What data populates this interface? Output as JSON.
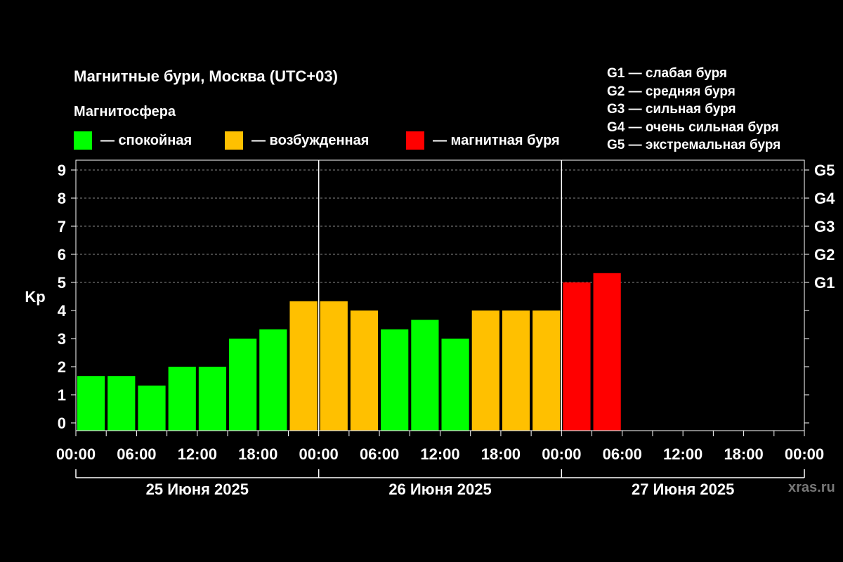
{
  "title": "Магнитные бури, Москва (UTC+03)",
  "subtitle": "Магнитосфера",
  "legend": {
    "calm": {
      "label": "— спокойная",
      "color": "#00ff00"
    },
    "excited": {
      "label": "— возбужденная",
      "color": "#ffc000"
    },
    "storm": {
      "label": "— магнитная буря",
      "color": "#ff0000"
    }
  },
  "g_levels": [
    "G1 — слабая буря",
    "G2 — средняя буря",
    "G3 — сильная буря",
    "G4 — очень сильная буря",
    "G5 — экстремальная буря"
  ],
  "watermark": "xras.ru",
  "chart_data": {
    "type": "bar",
    "ylabel": "Kp",
    "ylim": [
      0,
      9
    ],
    "yticks": [
      "0",
      "1",
      "2",
      "3",
      "4",
      "5",
      "6",
      "7",
      "8",
      "9"
    ],
    "right_axis_labels": [
      {
        "value": 5,
        "label": "G1"
      },
      {
        "value": 6,
        "label": "G2"
      },
      {
        "value": 7,
        "label": "G3"
      },
      {
        "value": 8,
        "label": "G4"
      },
      {
        "value": 9,
        "label": "G5"
      }
    ],
    "grid": "dashed horizontal at 5-9",
    "xtick_labels": [
      "00:00",
      "06:00",
      "12:00",
      "18:00",
      "00:00",
      "06:00",
      "12:00",
      "18:00",
      "00:00",
      "06:00",
      "12:00",
      "18:00",
      "00:00"
    ],
    "day_labels": [
      "25 Июня 2025",
      "26 Июня 2025",
      "27 Июня 2025"
    ],
    "values": [
      1.67,
      1.67,
      1.33,
      2,
      2,
      3,
      3.33,
      4.33,
      4.33,
      4,
      3.33,
      3.67,
      3,
      4,
      4,
      4,
      5,
      5.33
    ],
    "status": [
      "calm",
      "calm",
      "calm",
      "calm",
      "calm",
      "calm",
      "calm",
      "excited",
      "excited",
      "excited",
      "calm",
      "calm",
      "calm",
      "excited",
      "excited",
      "excited",
      "storm",
      "storm"
    ]
  }
}
